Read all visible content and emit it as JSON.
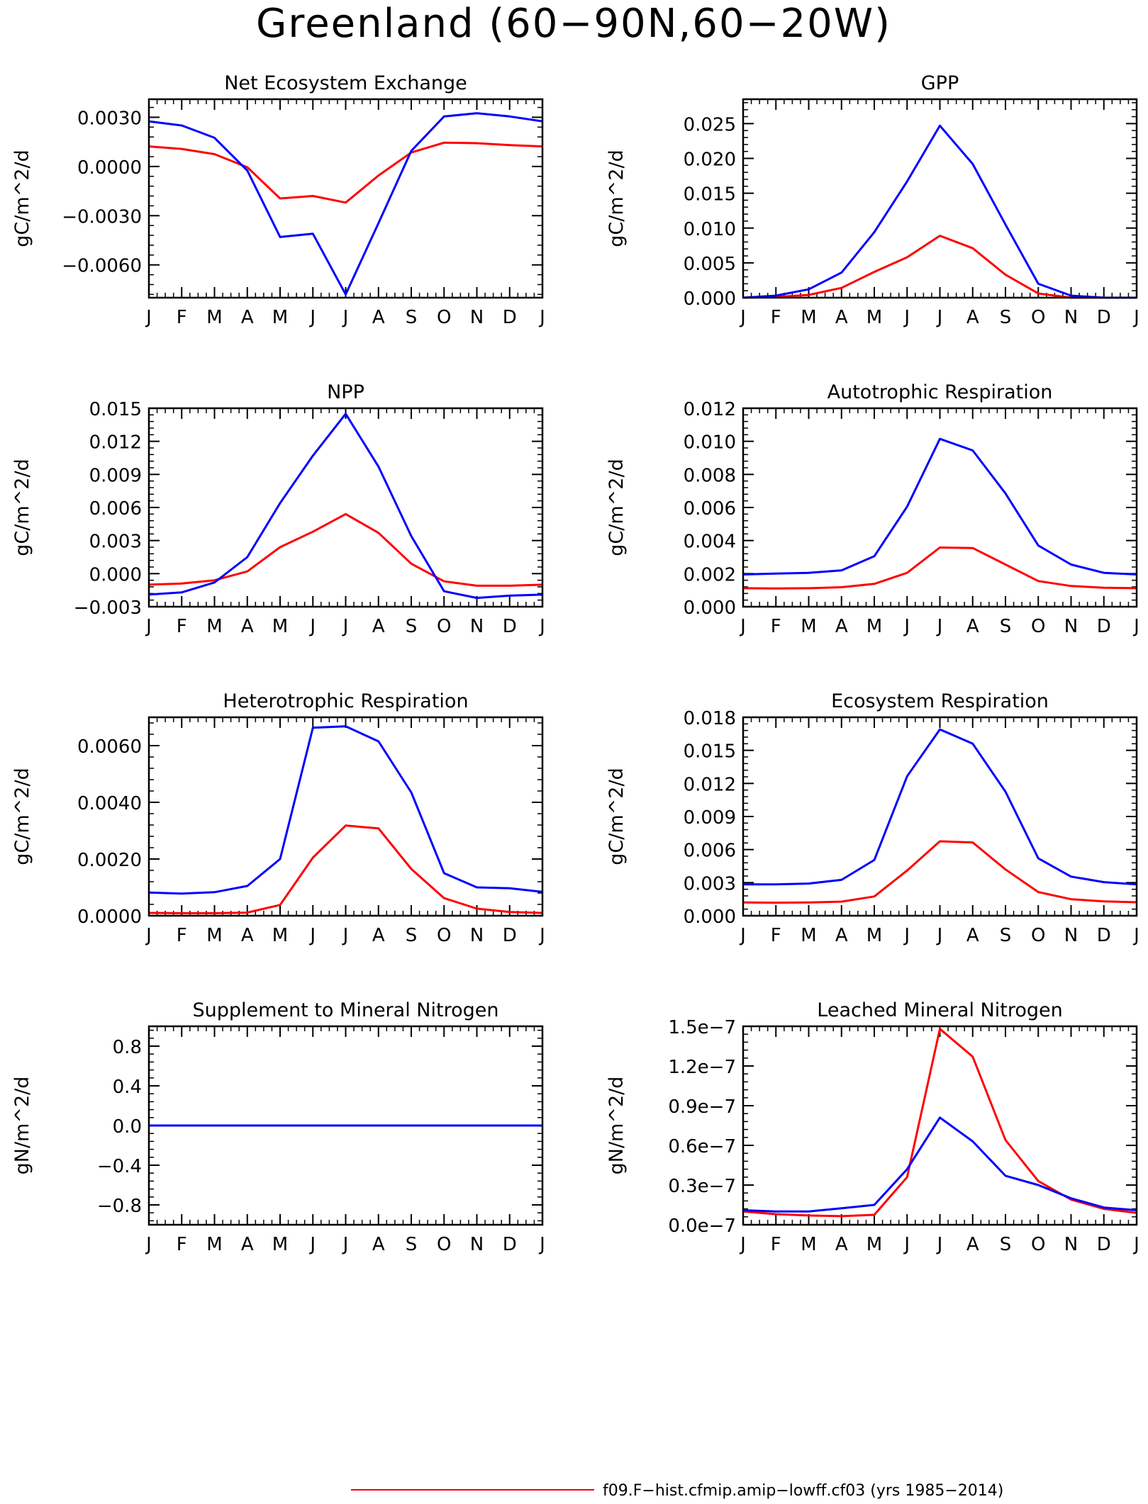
{
  "figure_title": "Greenland (60−90N,60−20W)",
  "legend": {
    "entries": [
      {
        "label": "f09.F−hist.cfmip.amip−lowff.cf03 (yrs 1985−2014)",
        "color": "#ff0000"
      }
    ]
  },
  "colors": {
    "series_red": "#ff0000",
    "series_blue": "#0000ff",
    "axis": "#000000"
  },
  "chart_data": [
    {
      "type": "line",
      "title": "Net Ecosystem Exchange",
      "ylabel": "gC/m^2/d",
      "x": [
        "J",
        "F",
        "M",
        "A",
        "M",
        "J",
        "J",
        "A",
        "S",
        "O",
        "N",
        "D",
        "J"
      ],
      "ylim": [
        -0.008,
        0.0041
      ],
      "yticks": [
        -0.006,
        -0.003,
        0.0,
        0.003
      ],
      "ytick_labels": [
        "−0.0060",
        "−0.0030",
        "0.0000",
        "0.0030"
      ],
      "series": [
        {
          "color": "#ff0000",
          "values": [
            0.00122,
            0.00107,
            0.00075,
            -5e-05,
            -0.00195,
            -0.0018,
            -0.0022,
            -0.00055,
            0.00085,
            0.00145,
            0.00142,
            0.0013,
            0.00122
          ]
        },
        {
          "color": "#0000ff",
          "values": [
            0.00275,
            0.0025,
            0.00175,
            -0.00025,
            -0.0043,
            -0.0041,
            -0.0078,
            -0.00345,
            0.00095,
            0.00305,
            0.00325,
            0.00305,
            0.00275
          ]
        }
      ]
    },
    {
      "type": "line",
      "title": "GPP",
      "ylabel": "gC/m^2/d",
      "x": [
        "J",
        "F",
        "M",
        "A",
        "M",
        "J",
        "J",
        "A",
        "S",
        "O",
        "N",
        "D",
        "J"
      ],
      "ylim": [
        0,
        0.0285
      ],
      "yticks": [
        0.0,
        0.005,
        0.01,
        0.015,
        0.02,
        0.025
      ],
      "ytick_labels": [
        "0.000",
        "0.005",
        "0.010",
        "0.015",
        "0.020",
        "0.025"
      ],
      "series": [
        {
          "color": "#ff0000",
          "values": [
            0.0,
            0.0001,
            0.0004,
            0.0014,
            0.0037,
            0.0058,
            0.0089,
            0.0071,
            0.0033,
            0.0006,
            0.0,
            0.0,
            0.0
          ]
        },
        {
          "color": "#0000ff",
          "values": [
            0.0,
            0.0003,
            0.0012,
            0.0036,
            0.0094,
            0.0167,
            0.0247,
            0.0192,
            0.0105,
            0.002,
            0.0003,
            0.0,
            0.0
          ]
        }
      ]
    },
    {
      "type": "line",
      "title": "NPP",
      "ylabel": "gC/m^2/d",
      "x": [
        "J",
        "F",
        "M",
        "A",
        "M",
        "J",
        "J",
        "A",
        "S",
        "O",
        "N",
        "D",
        "J"
      ],
      "ylim": [
        -0.003,
        0.015
      ],
      "yticks": [
        -0.003,
        0.0,
        0.003,
        0.006,
        0.009,
        0.012,
        0.015
      ],
      "ytick_labels": [
        "−0.003",
        "0.000",
        "0.003",
        "0.006",
        "0.009",
        "0.012",
        "0.015"
      ],
      "series": [
        {
          "color": "#ff0000",
          "values": [
            -0.001,
            -0.0009,
            -0.0006,
            0.0002,
            0.0024,
            0.0038,
            0.0054,
            0.0037,
            0.0009,
            -0.0007,
            -0.0011,
            -0.0011,
            -0.001
          ]
        },
        {
          "color": "#0000ff",
          "values": [
            -0.0019,
            -0.0017,
            -0.0008,
            0.0015,
            0.0064,
            0.0107,
            0.0145,
            0.0097,
            0.0034,
            -0.0016,
            -0.0022,
            -0.002,
            -0.0019
          ]
        }
      ]
    },
    {
      "type": "line",
      "title": "Autotrophic Respiration",
      "ylabel": "gC/m^2/d",
      "x": [
        "J",
        "F",
        "M",
        "A",
        "M",
        "J",
        "J",
        "A",
        "S",
        "O",
        "N",
        "D",
        "J"
      ],
      "ylim": [
        0,
        0.012
      ],
      "yticks": [
        0.0,
        0.002,
        0.004,
        0.006,
        0.008,
        0.01,
        0.012
      ],
      "ytick_labels": [
        "0.000",
        "0.002",
        "0.004",
        "0.006",
        "0.008",
        "0.010",
        "0.012"
      ],
      "series": [
        {
          "color": "#ff0000",
          "values": [
            0.00112,
            0.0011,
            0.00112,
            0.00118,
            0.00138,
            0.00205,
            0.00358,
            0.00355,
            0.00255,
            0.00155,
            0.00125,
            0.00115,
            0.00112
          ]
        },
        {
          "color": "#0000ff",
          "values": [
            0.00195,
            0.002,
            0.00205,
            0.0022,
            0.00305,
            0.00605,
            0.01015,
            0.00945,
            0.00685,
            0.0037,
            0.00255,
            0.00205,
            0.00195
          ]
        }
      ]
    },
    {
      "type": "line",
      "title": "Heterotrophic Respiration",
      "ylabel": "gC/m^2/d",
      "x": [
        "J",
        "F",
        "M",
        "A",
        "M",
        "J",
        "J",
        "A",
        "S",
        "O",
        "N",
        "D",
        "J"
      ],
      "ylim": [
        0,
        0.007
      ],
      "yticks": [
        0.0,
        0.002,
        0.004,
        0.006
      ],
      "ytick_labels": [
        "0.0000",
        "0.0020",
        "0.0040",
        "0.0060"
      ],
      "series": [
        {
          "color": "#ff0000",
          "values": [
            0.0001,
            9e-05,
            9e-05,
            0.00011,
            0.00038,
            0.00205,
            0.00318,
            0.00308,
            0.00165,
            0.00062,
            0.00025,
            0.00013,
            0.0001
          ]
        },
        {
          "color": "#0000ff",
          "values": [
            0.00082,
            0.00078,
            0.00083,
            0.00105,
            0.002,
            0.00663,
            0.00668,
            0.00615,
            0.00435,
            0.0015,
            0.001,
            0.00097,
            0.00084
          ]
        }
      ]
    },
    {
      "type": "line",
      "title": "Ecosystem Respiration",
      "ylabel": "gC/m^2/d",
      "x": [
        "J",
        "F",
        "M",
        "A",
        "M",
        "J",
        "J",
        "A",
        "S",
        "O",
        "N",
        "D",
        "J"
      ],
      "ylim": [
        0,
        0.018
      ],
      "yticks": [
        0.0,
        0.003,
        0.006,
        0.009,
        0.012,
        0.015,
        0.018
      ],
      "ytick_labels": [
        "0.000",
        "0.003",
        "0.006",
        "0.009",
        "0.012",
        "0.015",
        "0.018"
      ],
      "series": [
        {
          "color": "#ff0000",
          "values": [
            0.0012,
            0.00118,
            0.0012,
            0.00128,
            0.00175,
            0.0041,
            0.00675,
            0.00665,
            0.0042,
            0.00215,
            0.0015,
            0.0013,
            0.00122
          ]
        },
        {
          "color": "#0000ff",
          "values": [
            0.00285,
            0.00285,
            0.00292,
            0.00325,
            0.00505,
            0.01265,
            0.0169,
            0.0156,
            0.01125,
            0.0052,
            0.00355,
            0.00305,
            0.00285
          ]
        }
      ]
    },
    {
      "type": "line",
      "title": "Supplement to Mineral Nitrogen",
      "ylabel": "gN/m^2/d",
      "x": [
        "J",
        "F",
        "M",
        "A",
        "M",
        "J",
        "J",
        "A",
        "S",
        "O",
        "N",
        "D",
        "J"
      ],
      "ylim": [
        -1.0,
        1.0
      ],
      "yticks": [
        -0.8,
        -0.4,
        0.0,
        0.4,
        0.8
      ],
      "ytick_labels": [
        "−0.8",
        "−0.4",
        "0.0",
        "0.4",
        "0.8"
      ],
      "series": [
        {
          "color": "#ff0000",
          "values": [
            0,
            0,
            0,
            0,
            0,
            0,
            0,
            0,
            0,
            0,
            0,
            0,
            0
          ]
        },
        {
          "color": "#0000ff",
          "values": [
            0,
            0,
            0,
            0,
            0,
            0,
            0,
            0,
            0,
            0,
            0,
            0,
            0
          ]
        }
      ]
    },
    {
      "type": "line",
      "title": "Leached Mineral Nitrogen",
      "ylabel": "gN/m^2/d",
      "x": [
        "J",
        "F",
        "M",
        "A",
        "M",
        "J",
        "J",
        "A",
        "S",
        "O",
        "N",
        "D",
        "J"
      ],
      "ylim": [
        0,
        1.5e-07
      ],
      "yticks": [
        0.0,
        3e-08,
        6e-08,
        9e-08,
        1.2e-07,
        1.5e-07
      ],
      "ytick_labels": [
        "0.0e−7",
        "0.3e−7",
        "0.6e−7",
        "0.9e−7",
        "1.2e−7",
        "1.5e−7"
      ],
      "series": [
        {
          "color": "#ff0000",
          "values": [
            1e-08,
            8e-09,
            7e-09,
            6.5e-09,
            7.5e-09,
            3.6e-08,
            1.48e-07,
            1.27e-07,
            6.4e-08,
            3.3e-08,
            1.9e-08,
            1.2e-08,
            9e-09
          ]
        },
        {
          "color": "#0000ff",
          "values": [
            1.1e-08,
            1e-08,
            1e-08,
            1.25e-08,
            1.5e-08,
            4.2e-08,
            8.1e-08,
            6.3e-08,
            3.7e-08,
            3e-08,
            2e-08,
            1.3e-08,
            1.1e-08
          ]
        }
      ]
    }
  ]
}
